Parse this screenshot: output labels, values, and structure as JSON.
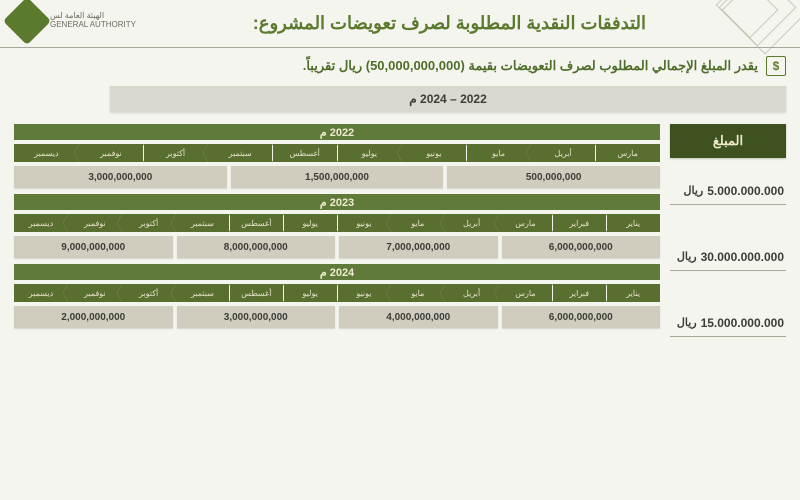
{
  "logo": {
    "line1": "الهيئة العامة لس",
    "line2": "GENERAL AUTHORITY"
  },
  "title": "التدفقات النقدية المطلوبة لصرف تعويضات المشروع:",
  "subtitle": "يقدر المبلغ الإجمالي المطلوب لصرف التعويضات بقيمة (50,000,000,000) ريال تقريباً.",
  "range_label": "2022 – 2024 م",
  "amount_header": "المبلغ",
  "currency_unit": "ريال",
  "colors": {
    "background": "#f5f5f0",
    "header_green": "#5b7a2e",
    "dark_green": "#3e5220",
    "mid_green": "#586f30",
    "light_green": "#5f7a39",
    "gray_box": "#d0cdbf",
    "range_gray": "#d8d8cc",
    "divider": "#a8a89a",
    "text_dark": "#3d3d36",
    "text_cream": "#efe9c8"
  },
  "fonts": {
    "title": 18,
    "subtitle": 13,
    "amount": 12,
    "month": 8,
    "value": 10
  },
  "years": [
    {
      "label": "2022 م",
      "total": "5.000.000.000",
      "months": [
        "مارس",
        "أبريل",
        "مايو",
        "يونيو",
        "يوليو",
        "أغسطس",
        "سبتمبر",
        "أكتوبر",
        "نوفمبر",
        "ديسمبر"
      ],
      "values": [
        "500,000,000",
        "1,500,000,000",
        "3,000,000,000"
      ]
    },
    {
      "label": "2023 م",
      "total": "30.000.000.000",
      "months": [
        "يناير",
        "فبراير",
        "مارس",
        "أبريل",
        "مايو",
        "يونيو",
        "يوليو",
        "أغسطس",
        "سبتمبر",
        "أكتوبر",
        "نوفمبر",
        "ديسمبر"
      ],
      "values": [
        "6,000,000,000",
        "7,000,000,000",
        "8,000,000,000",
        "9,000,000,000"
      ]
    },
    {
      "label": "2024 م",
      "total": "15.000.000.000",
      "months": [
        "يناير",
        "فبراير",
        "مارس",
        "أبريل",
        "مايو",
        "يونيو",
        "يوليو",
        "أغسطس",
        "سبتمبر",
        "أكتوبر",
        "نوفمبر",
        "ديسمبر"
      ],
      "values": [
        "6,000,000,000",
        "4,000,000,000",
        "3,000,000,000",
        "2,000,000,000"
      ]
    }
  ]
}
